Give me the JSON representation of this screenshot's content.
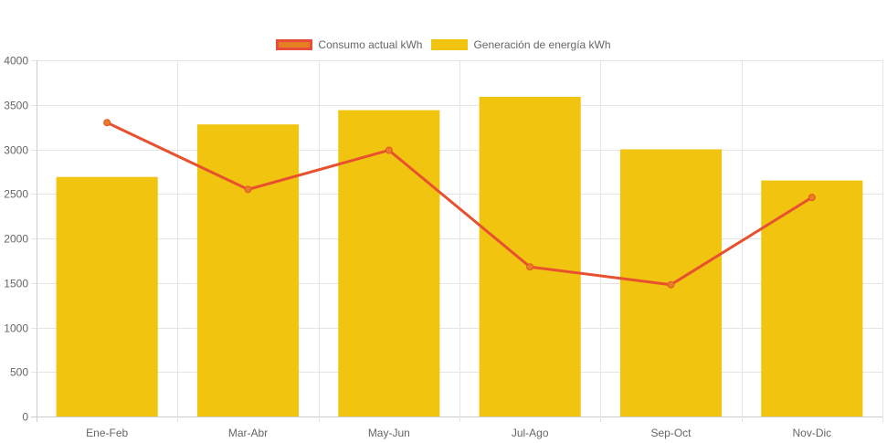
{
  "chart_data": {
    "type": "bar",
    "title": "",
    "xlabel": "",
    "ylabel": "",
    "categories": [
      "Ene-Feb",
      "Mar-Abr",
      "May-Jun",
      "Jul-Ago",
      "Sep-Oct",
      "Nov-Dic"
    ],
    "series": [
      {
        "name": "Consumo actual kWh",
        "type": "line",
        "values": [
          3300,
          2550,
          2990,
          1680,
          1480,
          2460
        ],
        "color": "#e8512f",
        "point_color": "#e67e22"
      },
      {
        "name": "Generación de energía kWh",
        "type": "bar",
        "values": [
          2690,
          3280,
          3440,
          3590,
          3000,
          2650
        ],
        "color": "#f1c40f"
      }
    ],
    "ylim": [
      0,
      4000
    ],
    "yticks": [
      0,
      500,
      1000,
      1500,
      2000,
      2500,
      3000,
      3500,
      4000
    ],
    "grid": true,
    "legend_position": "top-center"
  },
  "legend": {
    "items": [
      {
        "label": "Consumo actual kWh",
        "fill": "#e67e22",
        "border": "#e74c3c"
      },
      {
        "label": "Generación de energía kWh",
        "fill": "#f1c40f",
        "border": "#f1c40f"
      }
    ]
  }
}
